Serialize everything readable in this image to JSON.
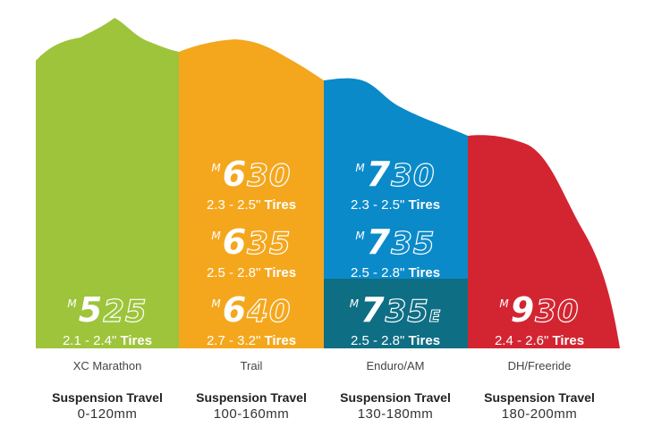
{
  "colors": {
    "xc": "#9dc43b",
    "trail": "#f4a71d",
    "enduro": "#0b8ac9",
    "enduro_e": "#0e6e84",
    "dh": "#d32531"
  },
  "models": [
    {
      "prefix": "M",
      "digit": "5",
      "rest": "25",
      "suffix": "",
      "range": "2.1 - 2.4\"",
      "unit": "Tires"
    },
    {
      "prefix": "M",
      "digit": "6",
      "rest": "30",
      "suffix": "",
      "range": "2.3 - 2.5\"",
      "unit": "Tires"
    },
    {
      "prefix": "M",
      "digit": "6",
      "rest": "35",
      "suffix": "",
      "range": "2.5 - 2.8\"",
      "unit": "Tires"
    },
    {
      "prefix": "M",
      "digit": "6",
      "rest": "40",
      "suffix": "",
      "range": "2.7 - 3.2\"",
      "unit": "Tires"
    },
    {
      "prefix": "M",
      "digit": "7",
      "rest": "30",
      "suffix": "",
      "range": "2.3 - 2.5\"",
      "unit": "Tires"
    },
    {
      "prefix": "M",
      "digit": "7",
      "rest": "35",
      "suffix": "",
      "range": "2.5 - 2.8\"",
      "unit": "Tires"
    },
    {
      "prefix": "M",
      "digit": "7",
      "rest": "35",
      "suffix": "E",
      "range": "2.5 - 2.8\"",
      "unit": "Tires"
    },
    {
      "prefix": "M",
      "digit": "9",
      "rest": "30",
      "suffix": "",
      "range": "2.4 - 2.6\"",
      "unit": "Tires"
    }
  ],
  "categories": [
    {
      "name": "XC Marathon",
      "travel_label": "Suspension Travel",
      "travel": "0-120mm"
    },
    {
      "name": "Trail",
      "travel_label": "Suspension Travel",
      "travel": "100-160mm"
    },
    {
      "name": "Enduro/AM",
      "travel_label": "Suspension Travel",
      "travel": "130-180mm"
    },
    {
      "name": "DH/Freeride",
      "travel_label": "Suspension Travel",
      "travel": "180-200mm"
    }
  ]
}
